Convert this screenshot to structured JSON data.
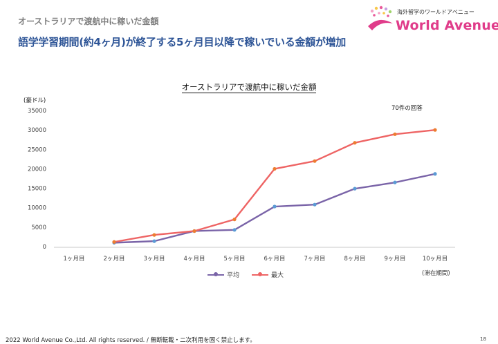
{
  "header": {
    "page_title": "オーストラリアで渡航中に稼いだ金額",
    "headline": "語学学習期間(約4ヶ月)が終了する5ヶ月目以降で稼いでいる金額が増加"
  },
  "logo": {
    "tagline": "海外留学のワールドアベニュー",
    "text": "World Avenue"
  },
  "colors": {
    "average": "#7a64a8",
    "maximum": "#ee6464",
    "marker_average": "#5b9bd5",
    "marker_maximum": "#ed7d31"
  },
  "chart_data": {
    "type": "line",
    "title": "オーストラリアで渡航中に稼いだ金額",
    "ylabel": "(豪ドル)",
    "xlabel": "(滞在期間)",
    "annotation": "70件の回答",
    "ylim": [
      0,
      35000
    ],
    "yticks": [
      "0",
      "5000",
      "10000",
      "15000",
      "20000",
      "25000",
      "30000",
      "35000"
    ],
    "categories": [
      "1ヶ月目",
      "2ヶ月目",
      "3ヶ月目",
      "4ヶ月目",
      "5ヶ月目",
      "6ヶ月目",
      "7ヶ月目",
      "8ヶ月目",
      "9ヶ月目",
      "10ヶ月目"
    ],
    "series": [
      {
        "name": "平均",
        "values": [
          null,
          1000,
          1400,
          4000,
          4300,
          10300,
          10800,
          14900,
          16500,
          18700
        ]
      },
      {
        "name": "最大",
        "values": [
          null,
          1200,
          3000,
          4000,
          7000,
          20000,
          22000,
          26700,
          28900,
          30000
        ]
      }
    ],
    "legend": "bottom"
  },
  "footer": {
    "copyright": "2022 World Avenue Co.,Ltd. All rights reserved. / 無断転載・二次利用を固く禁止します。",
    "page_number": "18"
  }
}
